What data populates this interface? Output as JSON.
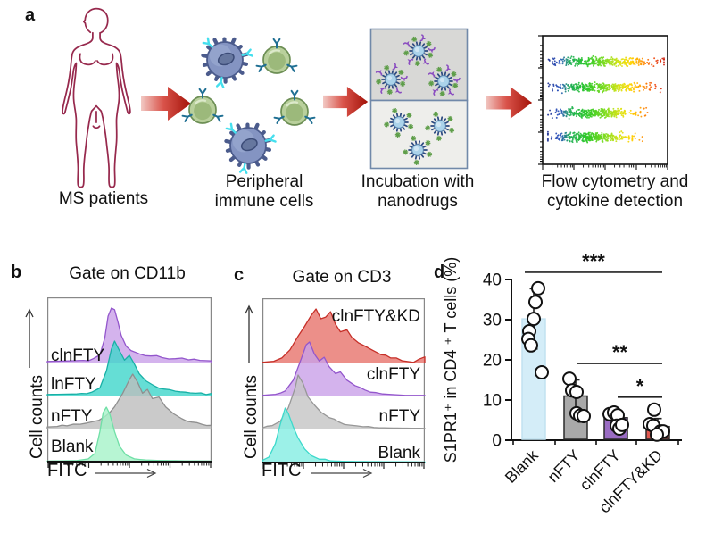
{
  "panel_a": {
    "label": "a",
    "captions": [
      "MS patients",
      "Peripheral immune cells",
      "Incubation with nanodrugs",
      "Flow cytometry and cytokine detection"
    ],
    "icons": [
      "female-body-outline",
      "red-arrow",
      "immune-cells",
      "nanodrug-boxes",
      "flow-cytometry-scatter"
    ],
    "arrow_colors": {
      "tail": "#f2c9c4",
      "mid": "#d9534a",
      "tip": "#a31208"
    }
  },
  "chart_data": [
    {
      "id": "panel_b",
      "panel_label": "b",
      "type": "stacked-flow-histograms",
      "title": "Gate on CD11b",
      "ylabel": "Cell counts",
      "xlabel": "FITC",
      "series": [
        {
          "name": "clnFTY",
          "level": 3,
          "fill": "#c9a0e8",
          "stroke": "#9356cc",
          "label_side": "left",
          "label_rise": 9,
          "points": [
            [
              0,
              0.02
            ],
            [
              0.13,
              0.03
            ],
            [
              0.22,
              0.04
            ],
            [
              0.28,
              0.07
            ],
            [
              0.32,
              0.14
            ],
            [
              0.35,
              0.45
            ],
            [
              0.37,
              0.85
            ],
            [
              0.39,
              1
            ],
            [
              0.41,
              0.97
            ],
            [
              0.43,
              0.75
            ],
            [
              0.45,
              0.5
            ],
            [
              0.48,
              0.3
            ],
            [
              0.51,
              0.22
            ],
            [
              0.56,
              0.16
            ],
            [
              0.63,
              0.12
            ],
            [
              0.7,
              0.09
            ],
            [
              0.78,
              0.07
            ],
            [
              0.86,
              0.05
            ],
            [
              0.93,
              0.04
            ],
            [
              1,
              0.03
            ]
          ]
        },
        {
          "name": "lnFTY",
          "level": 2,
          "fill": "#3fd6ca",
          "stroke": "#18b0a6",
          "label_side": "left",
          "label_rise": 14,
          "points": [
            [
              0,
              0.02
            ],
            [
              0.18,
              0.03
            ],
            [
              0.27,
              0.06
            ],
            [
              0.32,
              0.14
            ],
            [
              0.36,
              0.45
            ],
            [
              0.39,
              0.85
            ],
            [
              0.41,
              1
            ],
            [
              0.44,
              0.82
            ],
            [
              0.47,
              0.65
            ],
            [
              0.5,
              0.74
            ],
            [
              0.53,
              0.58
            ],
            [
              0.56,
              0.4
            ],
            [
              0.6,
              0.27
            ],
            [
              0.65,
              0.18
            ],
            [
              0.71,
              0.12
            ],
            [
              0.78,
              0.08
            ],
            [
              0.87,
              0.05
            ],
            [
              1,
              0.04
            ]
          ]
        },
        {
          "name": "nFTY",
          "level": 1,
          "fill": "#bdbdbd",
          "stroke": "#8f8f8f",
          "label_side": "left",
          "label_rise": 15,
          "points": [
            [
              0,
              0.03
            ],
            [
              0.12,
              0.05
            ],
            [
              0.2,
              0.08
            ],
            [
              0.28,
              0.13
            ],
            [
              0.35,
              0.22
            ],
            [
              0.41,
              0.4
            ],
            [
              0.46,
              0.65
            ],
            [
              0.5,
              0.9
            ],
            [
              0.52,
              1
            ],
            [
              0.55,
              0.85
            ],
            [
              0.58,
              0.65
            ],
            [
              0.61,
              0.72
            ],
            [
              0.64,
              0.55
            ],
            [
              0.68,
              0.58
            ],
            [
              0.72,
              0.4
            ],
            [
              0.77,
              0.27
            ],
            [
              0.82,
              0.18
            ],
            [
              0.88,
              0.12
            ],
            [
              0.94,
              0.08
            ],
            [
              1,
              0.06
            ]
          ]
        },
        {
          "name": "Blank",
          "level": 0,
          "fill": "#a5f2c8",
          "stroke": "#6fdfa6",
          "label_side": "left",
          "label_rise": 18,
          "points": [
            [
              0,
              0.01
            ],
            [
              0.18,
              0.02
            ],
            [
              0.25,
              0.05
            ],
            [
              0.29,
              0.15
            ],
            [
              0.32,
              0.55
            ],
            [
              0.34,
              0.9
            ],
            [
              0.36,
              1
            ],
            [
              0.38,
              0.88
            ],
            [
              0.41,
              0.55
            ],
            [
              0.44,
              0.28
            ],
            [
              0.48,
              0.12
            ],
            [
              0.53,
              0.05
            ],
            [
              0.6,
              0.03
            ],
            [
              0.7,
              0.02
            ],
            [
              1,
              0.01
            ]
          ]
        }
      ]
    },
    {
      "id": "panel_c",
      "panel_label": "c",
      "type": "stacked-flow-histograms",
      "title": "Gate on CD3",
      "ylabel": "Cell counts",
      "xlabel": "FITC",
      "series": [
        {
          "name": "clnFTY&KD",
          "level": 3,
          "fill": "#e7736b",
          "stroke": "#c62f28",
          "label_side": "right",
          "label_rise": 54,
          "points": [
            [
              0,
              0.02
            ],
            [
              0.07,
              0.04
            ],
            [
              0.12,
              0.1
            ],
            [
              0.17,
              0.25
            ],
            [
              0.22,
              0.5
            ],
            [
              0.26,
              0.68
            ],
            [
              0.3,
              0.88
            ],
            [
              0.33,
              1
            ],
            [
              0.36,
              0.82
            ],
            [
              0.39,
              0.85
            ],
            [
              0.42,
              0.95
            ],
            [
              0.45,
              0.72
            ],
            [
              0.48,
              0.58
            ],
            [
              0.52,
              0.62
            ],
            [
              0.55,
              0.48
            ],
            [
              0.59,
              0.38
            ],
            [
              0.63,
              0.32
            ],
            [
              0.68,
              0.24
            ],
            [
              0.73,
              0.16
            ],
            [
              0.79,
              0.1
            ],
            [
              0.86,
              0.05
            ],
            [
              0.93,
              0.02
            ],
            [
              1,
              0.12
            ]
          ]
        },
        {
          "name": "clnFTY",
          "level": 2,
          "fill": "#c9a0e8",
          "stroke": "#9356cc",
          "label_side": "right",
          "label_rise": 26,
          "points": [
            [
              0,
              0.02
            ],
            [
              0.08,
              0.04
            ],
            [
              0.14,
              0.1
            ],
            [
              0.19,
              0.3
            ],
            [
              0.24,
              0.7
            ],
            [
              0.27,
              0.95
            ],
            [
              0.29,
              1
            ],
            [
              0.32,
              0.78
            ],
            [
              0.35,
              0.65
            ],
            [
              0.38,
              0.72
            ],
            [
              0.41,
              0.55
            ],
            [
              0.45,
              0.42
            ],
            [
              0.48,
              0.45
            ],
            [
              0.52,
              0.3
            ],
            [
              0.57,
              0.2
            ],
            [
              0.63,
              0.12
            ],
            [
              0.7,
              0.07
            ],
            [
              0.78,
              0.04
            ],
            [
              0.88,
              0.02
            ],
            [
              1,
              0.02
            ]
          ]
        },
        {
          "name": "nFTY",
          "level": 1,
          "fill": "#c4c4c4",
          "stroke": "#979797",
          "label_side": "right",
          "label_rise": 16,
          "points": [
            [
              0,
              0.03
            ],
            [
              0.06,
              0.07
            ],
            [
              0.11,
              0.15
            ],
            [
              0.16,
              0.4
            ],
            [
              0.2,
              0.75
            ],
            [
              0.22,
              1
            ],
            [
              0.25,
              0.85
            ],
            [
              0.28,
              0.6
            ],
            [
              0.32,
              0.45
            ],
            [
              0.36,
              0.32
            ],
            [
              0.41,
              0.22
            ],
            [
              0.47,
              0.14
            ],
            [
              0.54,
              0.08
            ],
            [
              0.62,
              0.05
            ],
            [
              0.72,
              0.03
            ],
            [
              1,
              0.02
            ]
          ]
        },
        {
          "name": "Blank",
          "level": 0,
          "fill": "#83eee2",
          "stroke": "#3cd9cb",
          "label_side": "right",
          "label_rise": 12,
          "points": [
            [
              0,
              0.04
            ],
            [
              0.04,
              0.1
            ],
            [
              0.08,
              0.35
            ],
            [
              0.11,
              0.7
            ],
            [
              0.14,
              1
            ],
            [
              0.16,
              0.9
            ],
            [
              0.19,
              0.65
            ],
            [
              0.22,
              0.45
            ],
            [
              0.26,
              0.25
            ],
            [
              0.3,
              0.13
            ],
            [
              0.35,
              0.06
            ],
            [
              0.42,
              0.03
            ],
            [
              0.52,
              0.02
            ],
            [
              1,
              0.01
            ]
          ]
        }
      ]
    },
    {
      "id": "panel_d",
      "panel_label": "d",
      "type": "bar",
      "ylabel": "S1PR1⁺ in CD4 ⁺ T cells (%)",
      "ylim": [
        0,
        44
      ],
      "yticks": [
        0,
        10,
        20,
        30,
        40
      ],
      "categories": [
        "Blank",
        "nFTY",
        "clnFTY",
        "clnFTY&KD"
      ],
      "values": [
        30.2,
        11,
        5.6,
        3.4
      ],
      "errors": [
        7.5,
        4,
        1.8,
        2
      ],
      "bar_fills": [
        "#d4edf8",
        "#a9a9a9",
        "#9a6cc3",
        "#e0574f"
      ],
      "bar_edges": [
        "#c2e2f1",
        "#2a2a2a",
        "#2a2a2a",
        "#2a2a2a"
      ],
      "scatter_points": [
        [
          [
            5,
            37.8
          ],
          [
            2,
            34.4
          ],
          [
            0,
            30.2
          ],
          [
            -5,
            27.1
          ],
          [
            -6,
            25.2
          ],
          [
            -3,
            23.6
          ],
          [
            9,
            16.9
          ]
        ],
        [
          [
            -7,
            15.3
          ],
          [
            -4,
            12.4
          ],
          [
            1,
            12.0
          ],
          [
            1,
            6.7
          ],
          [
            5,
            6.1
          ],
          [
            9,
            6.0
          ]
        ],
        [
          [
            -7,
            6.5
          ],
          [
            -2,
            6.9
          ],
          [
            2,
            6.2
          ],
          [
            1,
            3.6
          ],
          [
            4,
            2.9
          ],
          [
            7,
            3.8
          ]
        ],
        [
          [
            -4,
            7.6
          ],
          [
            -9,
            4.0
          ],
          [
            -5,
            3.6
          ],
          [
            3,
            2.2
          ],
          [
            6,
            2.2
          ],
          [
            -1,
            1.4
          ]
        ]
      ],
      "significance": [
        {
          "stars": "***",
          "from": 0,
          "to": 3,
          "y": 41.8
        },
        {
          "stars": "**",
          "from": 1,
          "to": 3,
          "y": 19.1
        },
        {
          "stars": "*",
          "from": 2,
          "to": 3,
          "y": 10.7
        }
      ]
    },
    {
      "id": "panel_a_flow",
      "type": "scatter-density",
      "bands": [
        {
          "y": 0.2,
          "extent": 0.97
        },
        {
          "y": 0.4,
          "extent": 0.88
        },
        {
          "y": 0.6,
          "extent": 0.8
        },
        {
          "y": 0.79,
          "extent": 0.73
        }
      ],
      "dots_per_band": 360,
      "colormap": [
        [
          0,
          "#202e8f"
        ],
        [
          0.12,
          "#2a55c0"
        ],
        [
          0.2,
          "#1fae57"
        ],
        [
          0.35,
          "#2ec926"
        ],
        [
          0.5,
          "#7fdc1e"
        ],
        [
          0.62,
          "#d6e414"
        ],
        [
          0.72,
          "#ffd400"
        ],
        [
          0.82,
          "#ff9000"
        ],
        [
          0.92,
          "#f04810"
        ],
        [
          1,
          "#cc1c08"
        ]
      ]
    }
  ]
}
